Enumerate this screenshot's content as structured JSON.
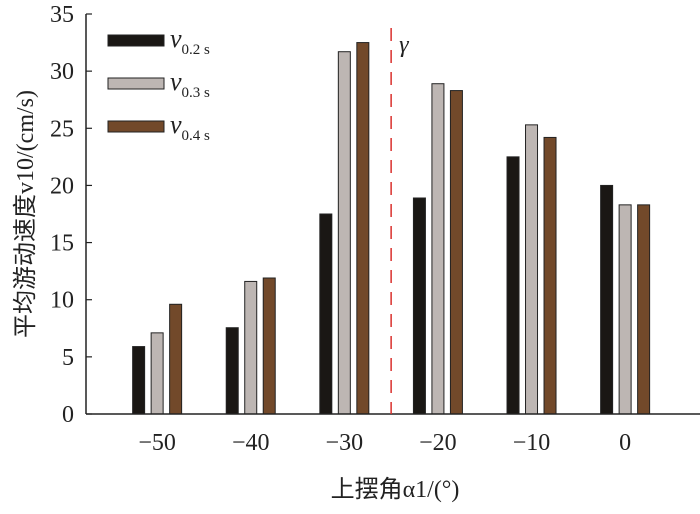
{
  "chart_data": {
    "type": "bar",
    "title": "",
    "xlabel": "上摆角α1/(°)",
    "ylabel": "平均游动速度v10/(cm/s)",
    "categories": [
      "-50",
      "-40",
      "-30",
      "-20",
      "-10",
      "0"
    ],
    "category_values": [
      -50,
      -40,
      -30,
      -20,
      -10,
      0
    ],
    "series": [
      {
        "name": "v0.2 s",
        "name_main": "v",
        "name_sub": "0.2 s",
        "color": "#1a1714",
        "values": [
          5.9,
          7.55,
          17.5,
          18.9,
          22.5,
          20.0
        ]
      },
      {
        "name": "v0.3 s",
        "name_main": "v",
        "name_sub": "0.3 s",
        "color": "#bdb6b3",
        "values": [
          7.1,
          11.6,
          31.7,
          28.9,
          25.3,
          18.3
        ]
      },
      {
        "name": "v0.4 s",
        "name_main": "v",
        "name_sub": "0.4 s",
        "color": "#72492a",
        "values": [
          9.6,
          11.9,
          32.5,
          28.3,
          24.2,
          18.3
        ]
      }
    ],
    "ylim": [
      0,
      35
    ],
    "xlim": [
      -57.6,
      8
    ],
    "yticks": [
      0,
      5,
      10,
      15,
      20,
      25,
      30,
      35
    ],
    "grid": false,
    "legend": "top-left",
    "annotations": [
      {
        "label": "γ",
        "x": -25,
        "style": "red dashed vertical line",
        "color": "#d9302c"
      }
    ]
  }
}
